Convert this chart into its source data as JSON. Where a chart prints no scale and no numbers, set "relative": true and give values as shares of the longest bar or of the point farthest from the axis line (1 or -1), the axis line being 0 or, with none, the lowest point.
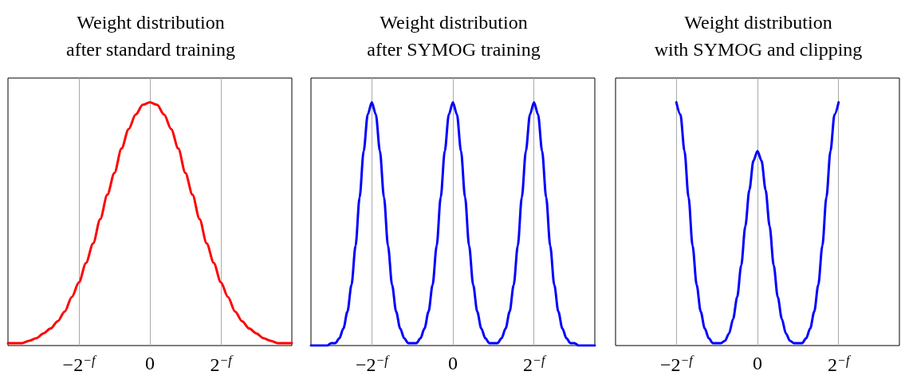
{
  "chart_data": [
    {
      "type": "line",
      "title": "Weight distribution\nafter standard training",
      "relative": true,
      "grid": "x",
      "categories": [
        null,
        null,
        null,
        null,
        null,
        null,
        null,
        null,
        null,
        null,
        "−2$^{−f}$",
        null,
        null,
        null,
        null,
        null,
        null,
        null,
        null,
        null,
        "0",
        null,
        null,
        null,
        null,
        null,
        null,
        null,
        null,
        null,
        "2$^{−f}$",
        null,
        null,
        null,
        null,
        null,
        null,
        null,
        null,
        null,
        null
      ],
      "series": [
        {
          "color": "#ff0000",
          "values": [
            0.01,
            0.01,
            0.01,
            0.02,
            0.03,
            0.05,
            0.07,
            0.1,
            0.14,
            0.2,
            0.26,
            0.34,
            0.42,
            0.52,
            0.62,
            0.71,
            0.81,
            0.89,
            0.95,
            0.99,
            1,
            0.99,
            0.95,
            0.89,
            0.81,
            0.71,
            0.62,
            0.52,
            0.42,
            0.34,
            0.26,
            0.2,
            0.14,
            0.1,
            0.07,
            0.05,
            0.03,
            0.02,
            0.01,
            0.01,
            0.01
          ]
        }
      ]
    },
    {
      "type": "line",
      "title": "Weight distribution\nafter SYMOG training",
      "relative": true,
      "grid": "x",
      "categories": [
        null,
        null,
        null,
        null,
        null,
        null,
        null,
        null,
        null,
        null,
        null,
        null,
        null,
        null,
        null,
        "−2$^{−f}$",
        null,
        null,
        null,
        null,
        null,
        null,
        null,
        null,
        null,
        null,
        null,
        null,
        null,
        null,
        null,
        null,
        null,
        null,
        null,
        "0",
        null,
        null,
        null,
        null,
        null,
        null,
        null,
        null,
        null,
        null,
        null,
        null,
        null,
        null,
        null,
        null,
        null,
        null,
        null,
        "2$^{−f}$",
        null,
        null,
        null,
        null,
        null,
        null,
        null,
        null,
        null,
        null,
        null,
        null,
        null,
        null,
        null
      ],
      "series": [
        {
          "color": "#0000ff",
          "values": [
            0,
            0,
            0,
            0,
            0,
            0.01,
            0.01,
            0.03,
            0.07,
            0.14,
            0.25,
            0.41,
            0.61,
            0.8,
            0.95,
            1,
            0.95,
            0.8,
            0.61,
            0.41,
            0.25,
            0.14,
            0.07,
            0.03,
            0.01,
            0.01,
            0.01,
            0.03,
            0.07,
            0.14,
            0.25,
            0.41,
            0.61,
            0.8,
            0.95,
            1,
            0.95,
            0.8,
            0.61,
            0.41,
            0.25,
            0.14,
            0.07,
            0.03,
            0.01,
            0.01,
            0.01,
            0.03,
            0.07,
            0.14,
            0.25,
            0.41,
            0.61,
            0.8,
            0.95,
            1,
            0.95,
            0.8,
            0.61,
            0.41,
            0.25,
            0.14,
            0.07,
            0.03,
            0.01,
            0.01,
            0,
            0,
            0,
            0,
            0
          ]
        }
      ]
    },
    {
      "type": "line",
      "title": "Weight distribution\nwith SYMOG and clipping",
      "relative": true,
      "grid": "x",
      "categories": [
        null,
        null,
        null,
        null,
        null,
        null,
        null,
        null,
        null,
        null,
        null,
        null,
        null,
        null,
        null,
        "−2$^{−f}$",
        null,
        null,
        null,
        null,
        null,
        null,
        null,
        null,
        null,
        null,
        null,
        null,
        null,
        null,
        null,
        null,
        null,
        null,
        null,
        "0",
        null,
        null,
        null,
        null,
        null,
        null,
        null,
        null,
        null,
        null,
        null,
        null,
        null,
        null,
        null,
        null,
        null,
        null,
        null,
        "2$^{−f}$",
        null,
        null,
        null,
        null,
        null,
        null,
        null,
        null,
        null,
        null,
        null,
        null,
        null,
        null,
        null
      ],
      "series": [
        {
          "color": "#0000ff",
          "values": [
            null,
            null,
            null,
            null,
            null,
            null,
            null,
            null,
            null,
            null,
            null,
            null,
            null,
            null,
            null,
            1,
            0.95,
            0.8,
            0.61,
            0.41,
            0.25,
            0.14,
            0.07,
            0.03,
            0.01,
            0.01,
            0.01,
            0.02,
            0.05,
            0.11,
            0.2,
            0.33,
            0.49,
            0.64,
            0.76,
            0.8,
            0.76,
            0.64,
            0.49,
            0.33,
            0.2,
            0.11,
            0.05,
            0.02,
            0.01,
            0.01,
            0.01,
            0.03,
            0.07,
            0.14,
            0.25,
            0.41,
            0.61,
            0.8,
            0.95,
            1,
            null,
            null,
            null,
            null,
            null,
            null,
            null,
            null,
            null,
            null,
            null,
            null,
            null,
            null,
            null
          ]
        }
      ]
    }
  ]
}
